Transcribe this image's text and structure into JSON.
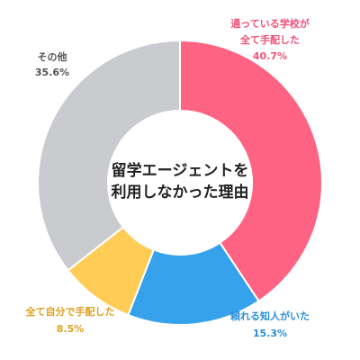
{
  "chart_data": {
    "type": "pie",
    "style": "donut",
    "center_label_lines": [
      "留学エージェントを",
      "利用しなかった理由"
    ],
    "slices": [
      {
        "label_lines": [
          "通っている学校が",
          "全て手配した"
        ],
        "value_text": "40.7%",
        "value": 40.7,
        "color": "#FF6383"
      },
      {
        "label_lines": [
          "頼れる知人がいた"
        ],
        "value_text": "15.3%",
        "value": 15.3,
        "color": "#36A2EB"
      },
      {
        "label_lines": [
          "全て自分で手配した"
        ],
        "value_text": "8.5%",
        "value": 8.5,
        "color": "#FFCD56"
      },
      {
        "label_lines": [
          "その他"
        ],
        "value_text": "35.6%",
        "value": 35.6,
        "color": "#C9CBCF"
      }
    ],
    "label_colors": [
      "#F0527A",
      "#2A8FD9",
      "#E0A020",
      "#555555"
    ],
    "start_angle": "top",
    "direction": "clockwise",
    "legend": "none",
    "grid": false
  }
}
